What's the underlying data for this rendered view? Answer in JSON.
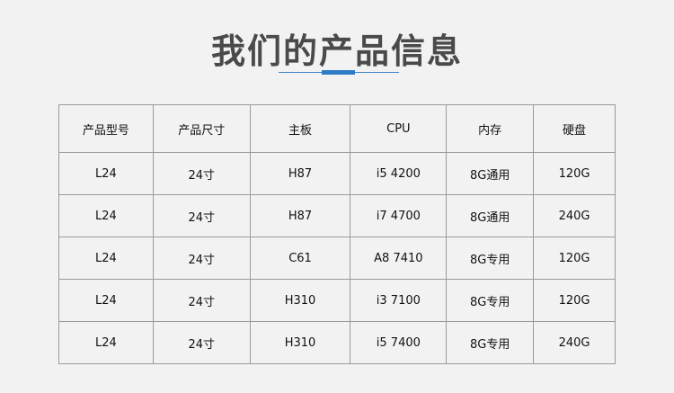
{
  "title": "我们的产品信息",
  "colors": {
    "accent": "#2d7cc8",
    "background": "#f2f2f2"
  },
  "table": {
    "headers": [
      "产品型号",
      "产品尺寸",
      "主板",
      "CPU",
      "内存",
      "硬盘"
    ],
    "rows": [
      [
        "L24",
        "24寸",
        "H87",
        "i5 4200",
        "8G通用",
        "120G"
      ],
      [
        "L24",
        "24寸",
        "H87",
        "i7 4700",
        "8G通用",
        "240G"
      ],
      [
        "L24",
        "24寸",
        "C61",
        "A8 7410",
        "8G专用",
        "120G"
      ],
      [
        "L24",
        "24寸",
        "H310",
        "i3 7100",
        "8G专用",
        "120G"
      ],
      [
        "L24",
        "24寸",
        "H310",
        "i5 7400",
        "8G专用",
        "240G"
      ]
    ]
  }
}
